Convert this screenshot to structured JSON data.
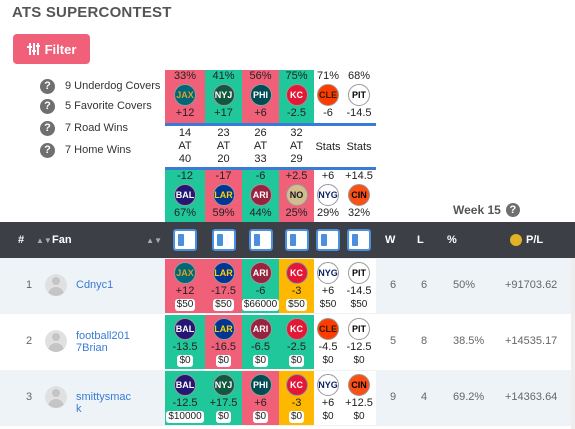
{
  "title": "ATS SUPERCONTEST",
  "filter_label": "Filter",
  "summary": [
    {
      "text": "9 Underdog Covers"
    },
    {
      "text": "5 Favorite Covers"
    },
    {
      "text": "7 Road Wins"
    },
    {
      "text": "7 Home Wins"
    }
  ],
  "games": [
    {
      "top_pct": "33%",
      "top_team": "JAX",
      "top_spread": "+12",
      "top_color": "#f06079",
      "mid": [
        "14",
        "AT",
        "40"
      ],
      "bot_spread": "-12",
      "bot_team": "BAL",
      "bot_pct": "67%",
      "bot_color": "#1fc79a"
    },
    {
      "top_pct": "41%",
      "top_team": "NYJ",
      "top_spread": "+17",
      "top_color": "#1fc79a",
      "mid": [
        "23",
        "AT",
        "20"
      ],
      "bot_spread": "-17",
      "bot_team": "LAR",
      "bot_pct": "59%",
      "bot_color": "#f06079"
    },
    {
      "top_pct": "56%",
      "top_team": "PHI",
      "top_spread": "+6",
      "top_color": "#f06079",
      "mid": [
        "26",
        "AT",
        "33"
      ],
      "bot_spread": "-6",
      "bot_team": "ARI",
      "bot_pct": "44%",
      "bot_color": "#1fc79a"
    },
    {
      "top_pct": "75%",
      "top_team": "KC",
      "top_spread": "-2.5",
      "top_color": "#1fc79a",
      "mid": [
        "32",
        "AT",
        "29"
      ],
      "bot_spread": "+2.5",
      "bot_team": "NO",
      "bot_pct": "25%",
      "bot_color": "#f06079"
    },
    {
      "top_pct": "71%",
      "top_team": "CLE",
      "top_spread": "-6",
      "top_color": "#ffffff",
      "mid": [
        "Stats"
      ],
      "bot_spread": "+6",
      "bot_team": "NYG",
      "bot_pct": "29%",
      "bot_color": "#ffffff"
    },
    {
      "top_pct": "68%",
      "top_team": "PIT",
      "top_spread": "-14.5",
      "top_color": "#ffffff",
      "mid": [
        "Stats"
      ],
      "bot_spread": "+14.5",
      "bot_team": "CIN",
      "bot_pct": "32%",
      "bot_color": "#ffffff"
    }
  ],
  "week_label": "Week 15",
  "table": {
    "headers": {
      "num": "#",
      "fan": "Fan",
      "w": "W",
      "l": "L",
      "pct": "%",
      "pl": "P/L"
    },
    "rows": [
      {
        "num": "1",
        "fan": "Cdnyc1",
        "w": "6",
        "l": "6",
        "pct": "50%",
        "pl": "+91703.62",
        "picks": [
          {
            "team": "JAX",
            "spread": "+12",
            "amt": "$50",
            "bg": "#f06079"
          },
          {
            "team": "LAR",
            "spread": "-17.5",
            "amt": "$50",
            "bg": "#f06079"
          },
          {
            "team": "ARI",
            "spread": "-6",
            "amt": "$66000",
            "bg": "#1fc79a"
          },
          {
            "team": "KC",
            "spread": "-3",
            "amt": "$50",
            "bg": "#ffb800"
          },
          {
            "team": "NYG",
            "spread": "+6",
            "amt": "$50",
            "bg": "#ffffff"
          },
          {
            "team": "PIT",
            "spread": "-14.5",
            "amt": "$50",
            "bg": "#ffffff"
          }
        ]
      },
      {
        "num": "2",
        "fan": "football2017Brian",
        "w": "5",
        "l": "8",
        "pct": "38.5%",
        "pl": "+14535.17",
        "picks": [
          {
            "team": "BAL",
            "spread": "-13.5",
            "amt": "$0",
            "bg": "#1fc79a"
          },
          {
            "team": "LAR",
            "spread": "-16.5",
            "amt": "$0",
            "bg": "#f06079"
          },
          {
            "team": "ARI",
            "spread": "-6.5",
            "amt": "$0",
            "bg": "#1fc79a"
          },
          {
            "team": "KC",
            "spread": "-2.5",
            "amt": "$0",
            "bg": "#1fc79a"
          },
          {
            "team": "CLE",
            "spread": "-4.5",
            "amt": "$0",
            "bg": "#ffffff"
          },
          {
            "team": "PIT",
            "spread": "-12.5",
            "amt": "$0",
            "bg": "#ffffff"
          }
        ]
      },
      {
        "num": "3",
        "fan": "smittysmack",
        "w": "9",
        "l": "4",
        "pct": "69.2%",
        "pl": "+14363.64",
        "picks": [
          {
            "team": "BAL",
            "spread": "-12.5",
            "amt": "$10000",
            "bg": "#1fc79a"
          },
          {
            "team": "NYJ",
            "spread": "+17.5",
            "amt": "$0",
            "bg": "#1fc79a"
          },
          {
            "team": "PHI",
            "spread": "+6",
            "amt": "$0",
            "bg": "#f06079"
          },
          {
            "team": "KC",
            "spread": "-3",
            "amt": "$0",
            "bg": "#ffb800"
          },
          {
            "team": "NYG",
            "spread": "+6",
            "amt": "$0",
            "bg": "#ffffff"
          },
          {
            "team": "CIN",
            "spread": "+12.5",
            "amt": "$0",
            "bg": "#ffffff"
          }
        ]
      }
    ]
  },
  "colors": {
    "accent": "#f06079",
    "green": "#1fc79a",
    "gold": "#ffb800",
    "header": "#3d3f47",
    "link": "#3a7bd5"
  }
}
